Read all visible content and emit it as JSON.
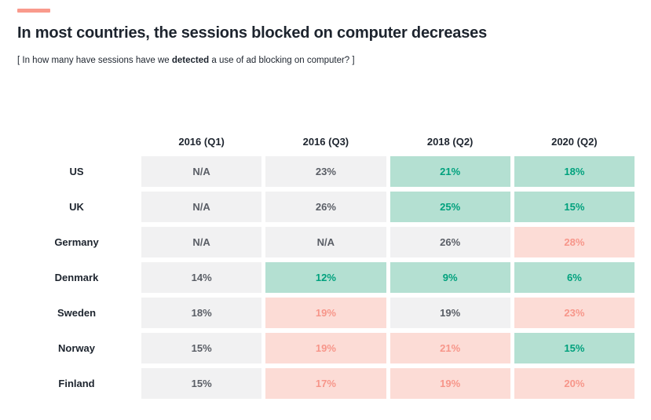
{
  "palette": {
    "accent": "#f99a8c",
    "title-color": "#1d242e",
    "neutral-bg": "#f1f1f2",
    "neutral-text": "#5a5e66",
    "good-bg": "#b4e0d2",
    "good-text": "#00a17d",
    "bad-bg": "#fcdcd6",
    "bad-text": "#f7968a"
  },
  "header": {
    "title": "In most countries, the sessions blocked on computer decreases",
    "subtitle_prefix": "[ In how many have sessions have we ",
    "subtitle_bold": "detected",
    "subtitle_suffix": " a use of ad blocking on computer? ]"
  },
  "chart_data": {
    "type": "table",
    "title": "In most countries, the sessions blocked on computer decreases",
    "columns": [
      "2016 (Q1)",
      "2016 (Q3)",
      "2018 (Q2)",
      "2020 (Q2)"
    ],
    "rows": [
      {
        "label": "US",
        "cells": [
          {
            "value": "N/A",
            "state": "neutral"
          },
          {
            "value": "23%",
            "state": "neutral"
          },
          {
            "value": "21%",
            "state": "good"
          },
          {
            "value": "18%",
            "state": "good"
          }
        ]
      },
      {
        "label": "UK",
        "cells": [
          {
            "value": "N/A",
            "state": "neutral"
          },
          {
            "value": "26%",
            "state": "neutral"
          },
          {
            "value": "25%",
            "state": "good"
          },
          {
            "value": "15%",
            "state": "good"
          }
        ]
      },
      {
        "label": "Germany",
        "cells": [
          {
            "value": "N/A",
            "state": "neutral"
          },
          {
            "value": "N/A",
            "state": "neutral"
          },
          {
            "value": "26%",
            "state": "neutral"
          },
          {
            "value": "28%",
            "state": "bad"
          }
        ]
      },
      {
        "label": "Denmark",
        "cells": [
          {
            "value": "14%",
            "state": "neutral"
          },
          {
            "value": "12%",
            "state": "good"
          },
          {
            "value": "9%",
            "state": "good"
          },
          {
            "value": "6%",
            "state": "good"
          }
        ]
      },
      {
        "label": "Sweden",
        "cells": [
          {
            "value": "18%",
            "state": "neutral"
          },
          {
            "value": "19%",
            "state": "bad"
          },
          {
            "value": "19%",
            "state": "neutral"
          },
          {
            "value": "23%",
            "state": "bad"
          }
        ]
      },
      {
        "label": "Norway",
        "cells": [
          {
            "value": "15%",
            "state": "neutral"
          },
          {
            "value": "19%",
            "state": "bad"
          },
          {
            "value": "21%",
            "state": "bad"
          },
          {
            "value": "15%",
            "state": "good"
          }
        ]
      },
      {
        "label": "Finland",
        "cells": [
          {
            "value": "15%",
            "state": "neutral"
          },
          {
            "value": "17%",
            "state": "bad"
          },
          {
            "value": "19%",
            "state": "bad"
          },
          {
            "value": "20%",
            "state": "bad"
          }
        ]
      }
    ],
    "cell_state_meaning": {
      "neutral": "gray",
      "good": "green (decrease)",
      "bad": "pink (increase)"
    }
  }
}
